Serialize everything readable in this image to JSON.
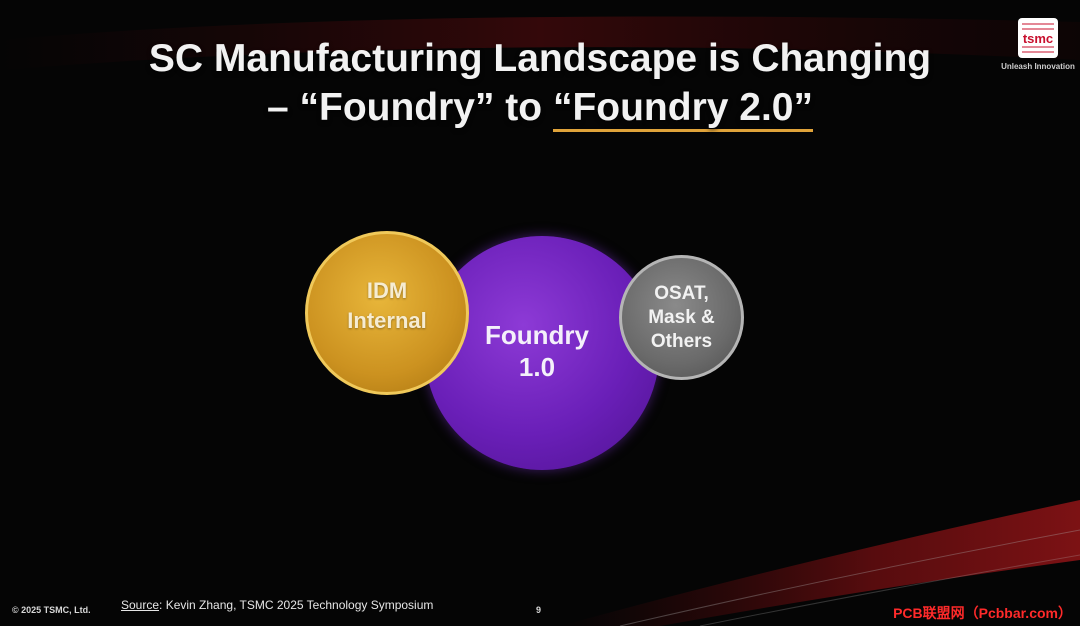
{
  "title": {
    "line1": "SC Manufacturing Landscape is Changing",
    "line2_prefix": "– “Foundry” to ",
    "line2_highlight": "“Foundry 2.0”"
  },
  "logo": {
    "brand": "tsmc",
    "tagline": "Unleash Innovation"
  },
  "diagram": {
    "idm": {
      "line1": "IDM",
      "line2": "Internal",
      "color": "#d9a22b"
    },
    "foundry": {
      "line1": "Foundry",
      "line2": "1.0",
      "color": "#6e22bd"
    },
    "osat": {
      "line1": "OSAT,",
      "line2": "Mask &",
      "line3": "Others",
      "color": "#6b6b6b"
    }
  },
  "footer": {
    "copyright": "© 2025 TSMC, Ltd.",
    "source_label": "Source",
    "source_text": ": Kevin Zhang, TSMC 2025 Technology Symposium",
    "page_number": "9",
    "watermark": "PCB联盟网（Pcbbar.com）"
  },
  "colors": {
    "background": "#050505",
    "accent_underline": "#e0a33a",
    "streak_red": "#7a0f12"
  }
}
